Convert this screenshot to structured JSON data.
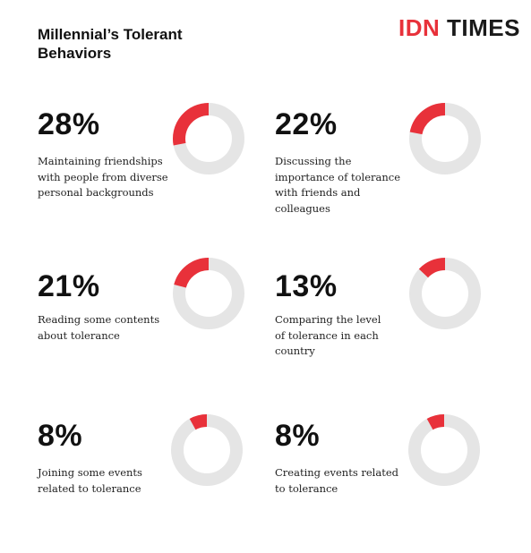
{
  "title": "Millennial’s Tolerant Behaviors",
  "logo": {
    "brand": "IDN",
    "rest": " TIMES"
  },
  "colors": {
    "accent": "#e8313a",
    "track": "#e5e5e5"
  },
  "chart_data": {
    "type": "pie",
    "title": "Millennial’s Tolerant Behaviors",
    "items": [
      {
        "label": "28%",
        "value": 28,
        "description": "Maintaining friendships with people from diverse personal backgrounds"
      },
      {
        "label": "22%",
        "value": 22,
        "description": "Discussing the importance of tolerance with friends and colleagues"
      },
      {
        "label": "21%",
        "value": 21,
        "description": "Reading some contents about tolerance"
      },
      {
        "label": "13%",
        "value": 13,
        "description": "Comparing the level of tolerance in each country"
      },
      {
        "label": "8%",
        "value": 8,
        "description": "Joining some events related to tolerance"
      },
      {
        "label": "8%",
        "value": 8,
        "description": "Creating events related to tolerance"
      }
    ]
  }
}
